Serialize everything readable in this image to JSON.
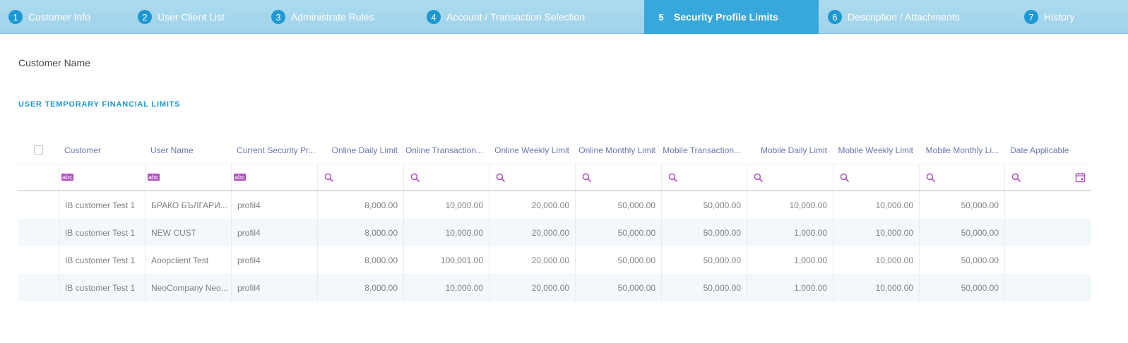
{
  "tabs": [
    {
      "num": "1",
      "label": "Customer Info"
    },
    {
      "num": "2",
      "label": "User Client List"
    },
    {
      "num": "3",
      "label": "Administrate Rules"
    },
    {
      "num": "4",
      "label": "Account / Transaction Selection"
    },
    {
      "num": "5",
      "label": "Security Profile Limits"
    },
    {
      "num": "6",
      "label": "Description / Attachments"
    },
    {
      "num": "7",
      "label": "History"
    }
  ],
  "active_tab": "5",
  "customer_name_label": "Customer Name",
  "section_title": "USER TEMPORARY FINANCIAL LIMITS",
  "grid": {
    "columns": [
      "Customer",
      "User Name",
      "Current Security Pr...",
      "Online Daily Limit",
      "Online Transaction...",
      "Online Weekly Limit",
      "Online Monthly Limit",
      "Mobile Transaction...",
      "Mobile Daily Limit",
      "Mobile Weekly Limit",
      "Mobile Monthly Li...",
      "Date Applicable"
    ],
    "text_filter_icon": "abc",
    "rows": [
      [
        "IB customer Test 1",
        "БРАКО БЪЛГАРИ...",
        "profil4",
        "8,000.00",
        "10,000.00",
        "20,000.00",
        "50,000.00",
        "50,000.00",
        "10,000.00",
        "10,000.00",
        "50,000.00",
        ""
      ],
      [
        "IB customer Test 1",
        "NEW CUST",
        "profil4",
        "8,000.00",
        "10,000.00",
        "20,000.00",
        "50,000.00",
        "50,000.00",
        "1,000.00",
        "10,000.00",
        "50,000.00",
        ""
      ],
      [
        "IB customer Test 1",
        "Aoopclient Test",
        "profil4",
        "8,000.00",
        "100,001.00",
        "20,000.00",
        "50,000.00",
        "50,000.00",
        "1,000.00",
        "10,000.00",
        "50,000.00",
        ""
      ],
      [
        "IB customer Test 1",
        "NeoCompany Neo...",
        "profil4",
        "8,000.00",
        "10,000.00",
        "20,000.00",
        "50,000.00",
        "50,000.00",
        "1,000.00",
        "10,000.00",
        "50,000.00",
        ""
      ]
    ]
  },
  "colors": {
    "tab_bg": "#a4d6ec",
    "tab_active": "#38a7db",
    "tab_number": "#1e98d3",
    "section_title": "#1e98d3",
    "header_text": "#6b78b0",
    "filter_icon": "#b04fbf",
    "alt_row": "#f3f8fa"
  },
  "icons": {
    "checkbox": "select-all-checkbox",
    "text_filter": "abc-filter-icon",
    "search": "search-icon",
    "calendar": "calendar-icon"
  }
}
